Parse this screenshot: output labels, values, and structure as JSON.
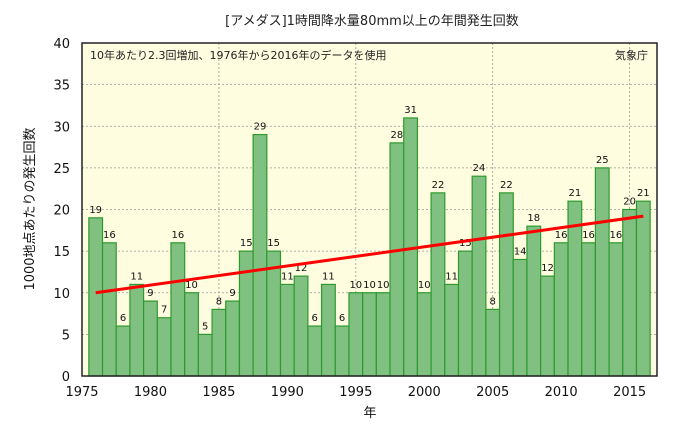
{
  "chart_data": {
    "type": "bar",
    "title": "[アメダス]1時間降水量80mm以上の年間発生回数",
    "annotation": "10年あたり2.3回増加、1976年から2016年のデータを使用",
    "source": "気象庁",
    "xlabel": "年",
    "ylabel": "1000地点あたりの発生回数",
    "xlim": [
      1975,
      2017
    ],
    "ylim": [
      0,
      40
    ],
    "x_ticks": [
      1975,
      1980,
      1985,
      1990,
      1995,
      2000,
      2005,
      2010,
      2015
    ],
    "y_ticks": [
      0,
      5,
      10,
      15,
      20,
      25,
      30,
      35,
      40
    ],
    "grid": true,
    "categories": [
      1976,
      1977,
      1978,
      1979,
      1980,
      1981,
      1982,
      1983,
      1984,
      1985,
      1986,
      1987,
      1988,
      1989,
      1990,
      1991,
      1992,
      1993,
      1994,
      1995,
      1996,
      1997,
      1998,
      1999,
      2000,
      2001,
      2002,
      2003,
      2004,
      2005,
      2006,
      2007,
      2008,
      2009,
      2010,
      2011,
      2012,
      2013,
      2014,
      2015,
      2016
    ],
    "values": [
      19,
      16,
      6,
      11,
      9,
      7,
      16,
      10,
      5,
      8,
      9,
      15,
      29,
      15,
      11,
      12,
      6,
      11,
      6,
      10,
      10,
      10,
      28,
      31,
      10,
      22,
      11,
      15,
      24,
      8,
      22,
      14,
      18,
      12,
      16,
      21,
      16,
      25,
      16,
      20,
      21
    ],
    "trend": {
      "x": [
        1976,
        2016
      ],
      "y": [
        10.0,
        19.2
      ]
    },
    "colors": {
      "bar_fill": "#80c080",
      "bar_stroke": "#2e9a2e",
      "trend": "#ff0000",
      "plot_bg": "#fffde0",
      "grid": "#999999"
    }
  }
}
